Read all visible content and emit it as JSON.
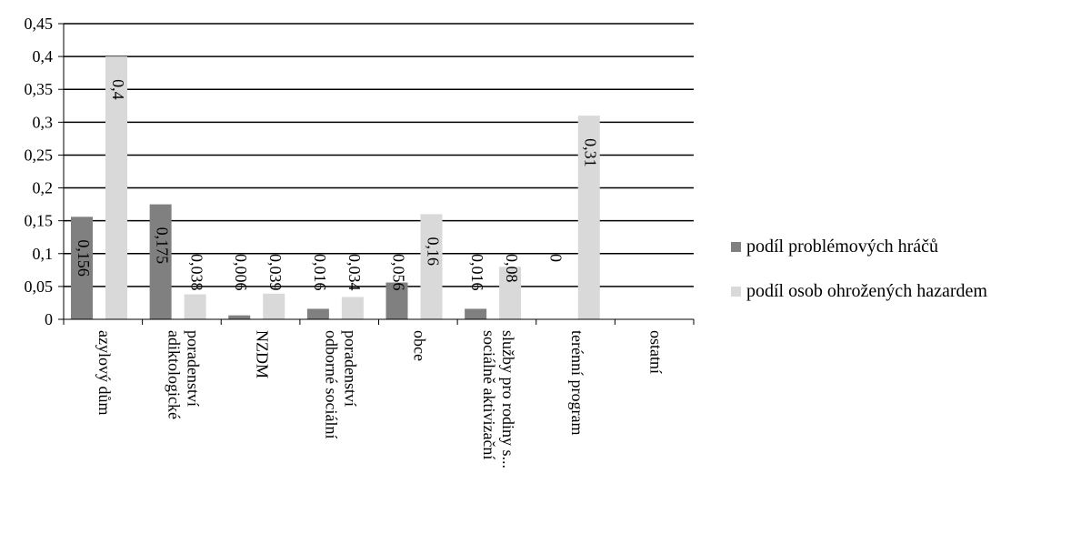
{
  "chart_data": {
    "type": "bar",
    "title": "",
    "xlabel": "",
    "ylabel": "",
    "ylim": [
      0,
      0.45
    ],
    "y_ticks": [
      "0",
      "0,05",
      "0,1",
      "0,15",
      "0,2",
      "0,25",
      "0,3",
      "0,35",
      "0,4",
      "0,45"
    ],
    "y_tick_values": [
      0,
      0.05,
      0.1,
      0.15,
      0.2,
      0.25,
      0.3,
      0.35,
      0.4,
      0.45
    ],
    "grid": true,
    "legend_position": "right",
    "categories": [
      {
        "lines": [
          "azylový dům"
        ]
      },
      {
        "lines": [
          "adiktologické",
          "poradenství"
        ]
      },
      {
        "lines": [
          "NZDM"
        ]
      },
      {
        "lines": [
          "odborné sociální",
          "poradenství"
        ]
      },
      {
        "lines": [
          "obce"
        ]
      },
      {
        "lines": [
          "sociálně aktivizační",
          "služby pro rodiny s..."
        ]
      },
      {
        "lines": [
          "terénní program"
        ]
      },
      {
        "lines": [
          "ostatní"
        ]
      }
    ],
    "series": [
      {
        "name": "podíl problémových hráčů",
        "color": "#808080",
        "values": [
          0.156,
          0.175,
          0.006,
          0.016,
          0.056,
          0.016,
          0,
          null
        ],
        "labels": [
          "0,156",
          "0,175",
          "0,006",
          "0,016",
          "0,056",
          "0,016",
          "0",
          ""
        ]
      },
      {
        "name": "podíl osob ohrožených hazardem",
        "color": "#d9d9d9",
        "values": [
          0.4,
          0.038,
          0.039,
          0.034,
          0.16,
          0.08,
          0.31,
          null
        ],
        "labels": [
          "0,4",
          "0,038",
          "0,039",
          "0,034",
          "0,16",
          "0,08",
          "0,31",
          ""
        ]
      }
    ]
  }
}
